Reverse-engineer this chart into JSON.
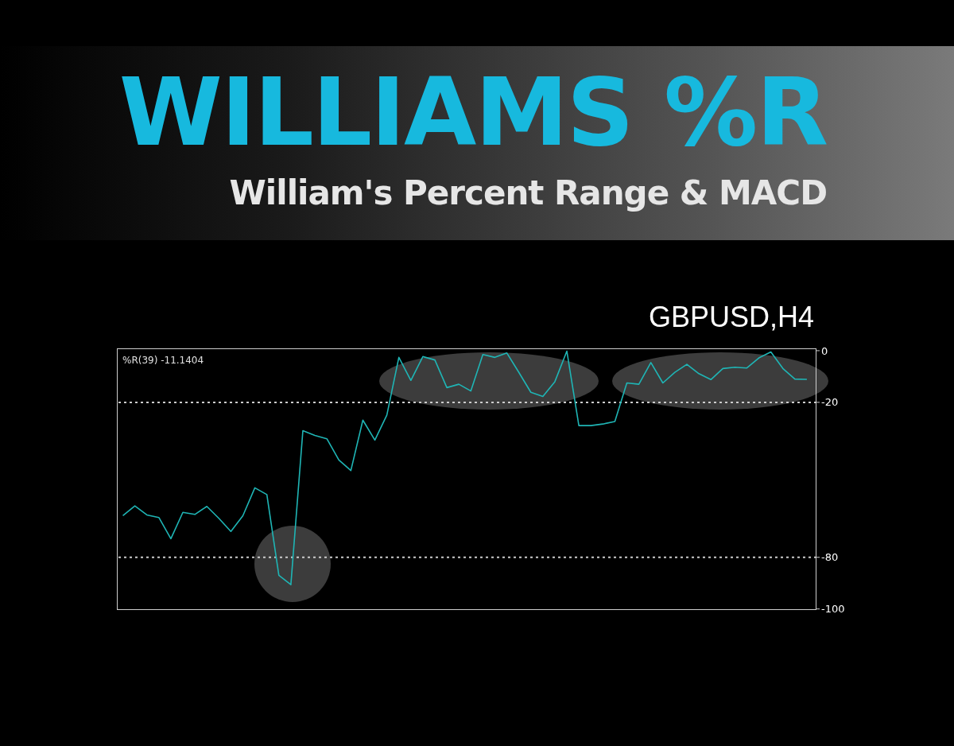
{
  "chart_data": {
    "type": "line",
    "title": "WILLIAMS %R",
    "subtitle": "William's Percent Range & MACD",
    "annotations": [
      "GBPUSD,H4",
      "%R(39) -11.1404"
    ],
    "categories": [
      null,
      null,
      null,
      null,
      null,
      null,
      null,
      null,
      null,
      null,
      null,
      null,
      null,
      null,
      null,
      null,
      null,
      null,
      null,
      null,
      null,
      null,
      null,
      null,
      null,
      null,
      null,
      null,
      null,
      null,
      null,
      null,
      null,
      null,
      null,
      null,
      null,
      null,
      null,
      null,
      null,
      null,
      null,
      null,
      null,
      null,
      null,
      null,
      null,
      null,
      null,
      null,
      null,
      null,
      null,
      null,
      null,
      null
    ],
    "series": [
      {
        "color": "#1fb5b5",
        "values": [
          -63.9,
          -60.1,
          -63.6,
          -64.6,
          -72.8,
          -62.6,
          -63.4,
          -60.3,
          -64.9,
          -70.0,
          -63.9,
          -53.1,
          -55.7,
          -87.0,
          -90.6,
          -31.0,
          -32.8,
          -34.1,
          -42.3,
          -46.4,
          -26.9,
          -34.6,
          -24.9,
          -2.6,
          -11.5,
          -2.3,
          -3.6,
          -14.3,
          -13.0,
          -15.6,
          -1.5,
          -2.6,
          -0.9,
          -8.4,
          -16.1,
          -17.7,
          -12.0,
          -0.2,
          -29.0,
          -29.0,
          -28.4,
          -27.4,
          -12.5,
          -13.0,
          -4.6,
          -12.5,
          -8.4,
          -5.3,
          -8.9,
          -11.2,
          -6.9,
          -6.4,
          -6.7,
          -2.8,
          -0.5,
          -6.9,
          -11.0,
          -11.1
        ]
      }
    ],
    "ylim": [
      -100.4,
      0.9
    ],
    "yticks": [
      0,
      -20,
      -80,
      -100
    ],
    "tick_labels": "y",
    "ref_lines": [
      {
        "axis": "y",
        "value": -20,
        "color": "#cccccc",
        "line_style": "dotted"
      },
      {
        "axis": "y",
        "value": -80,
        "color": "#cccccc",
        "line_style": "dotted"
      }
    ],
    "marker": "none",
    "line_style": "solid"
  }
}
